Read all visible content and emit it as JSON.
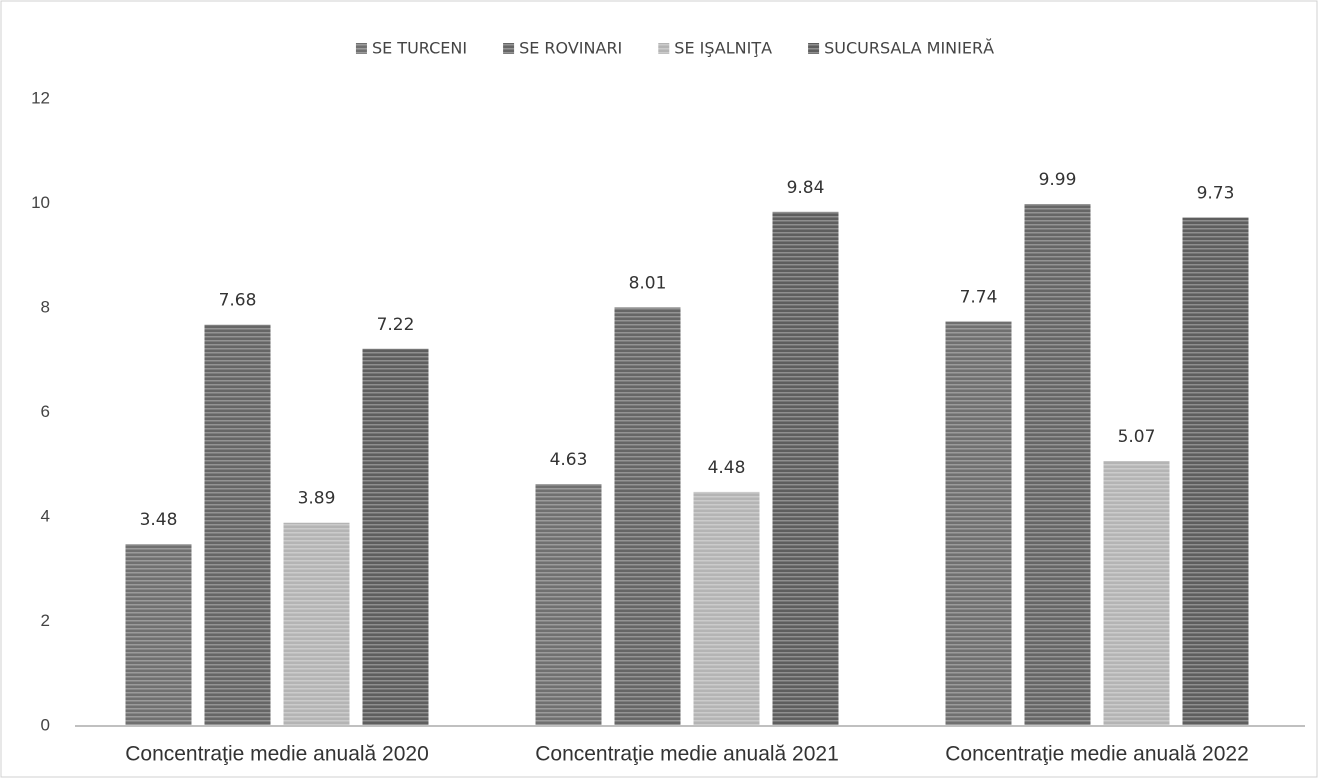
{
  "chart_data": {
    "type": "bar",
    "categories": [
      "Concentraţie medie anuală 2020",
      "Concentraţie medie anuală 2021",
      "Concentraţie medie anuală 2022"
    ],
    "series": [
      {
        "name": "SE TURCENI",
        "color": "#707070",
        "values": [
          3.48,
          4.63,
          7.74
        ]
      },
      {
        "name": "SE ROVINARI",
        "color": "#666666",
        "values": [
          7.68,
          8.01,
          9.99
        ]
      },
      {
        "name": "SE IŞALNIŢA",
        "color": "#b4b4b4",
        "values": [
          3.89,
          4.48,
          5.07
        ]
      },
      {
        "name": "SUCURSALA MINIERĂ",
        "color": "#5e5e5e",
        "values": [
          7.22,
          9.84,
          9.73
        ]
      }
    ],
    "ylim": [
      0,
      12
    ],
    "yticks": [
      0,
      2,
      4,
      6,
      8,
      10,
      12
    ],
    "grid": false,
    "legend": "top"
  }
}
